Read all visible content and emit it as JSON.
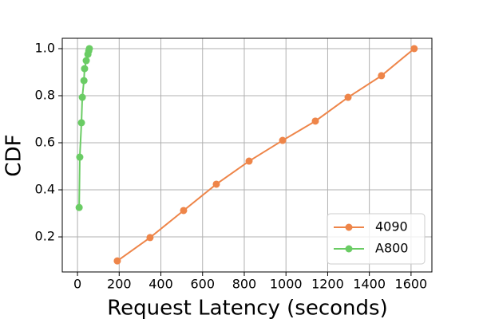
{
  "chart_data": {
    "type": "line",
    "xlabel": "Request Latency (seconds)",
    "ylabel": "CDF",
    "xlim": [
      -73,
      1700
    ],
    "ylim": [
      0.051,
      1.044
    ],
    "xticks": [
      0,
      200,
      400,
      600,
      800,
      1000,
      1200,
      1400,
      1600
    ],
    "yticks": [
      0.2,
      0.4,
      0.6,
      0.8,
      {
        "value": 1,
        "label": "1.0"
      }
    ],
    "grid": true,
    "legend": "lower right",
    "series": [
      {
        "name": "4090",
        "color": "#ee8549",
        "x": [
          191,
          348,
          509,
          666,
          823,
          984,
          1141,
          1298,
          1458,
          1615
        ],
        "values": [
          0.098,
          0.197,
          0.312,
          0.424,
          0.522,
          0.61,
          0.692,
          0.793,
          0.885,
          1.0
        ]
      },
      {
        "name": "A800",
        "color": "#6acc64",
        "x": [
          8,
          11,
          19,
          23,
          31,
          34,
          42,
          50,
          54,
          57
        ],
        "values": [
          0.325,
          0.539,
          0.685,
          0.793,
          0.864,
          0.915,
          0.949,
          0.976,
          0.99,
          1.0
        ]
      }
    ]
  }
}
